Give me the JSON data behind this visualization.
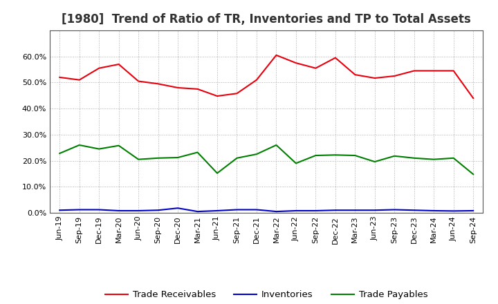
{
  "title": "[1980]  Trend of Ratio of TR, Inventories and TP to Total Assets",
  "labels": [
    "Jun-19",
    "Sep-19",
    "Dec-19",
    "Mar-20",
    "Jun-20",
    "Sep-20",
    "Dec-20",
    "Mar-21",
    "Jun-21",
    "Sep-21",
    "Dec-21",
    "Mar-22",
    "Jun-22",
    "Sep-22",
    "Dec-22",
    "Mar-23",
    "Jun-23",
    "Sep-23",
    "Dec-23",
    "Mar-24",
    "Jun-24",
    "Sep-24"
  ],
  "trade_receivables": [
    0.52,
    0.51,
    0.555,
    0.57,
    0.505,
    0.495,
    0.48,
    0.475,
    0.448,
    0.458,
    0.51,
    0.605,
    0.575,
    0.555,
    0.595,
    0.53,
    0.517,
    0.525,
    0.545,
    0.545,
    0.545,
    0.44
  ],
  "inventories": [
    0.01,
    0.012,
    0.012,
    0.008,
    0.008,
    0.01,
    0.018,
    0.005,
    0.008,
    0.012,
    0.012,
    0.005,
    0.008,
    0.008,
    0.01,
    0.01,
    0.01,
    0.012,
    0.01,
    0.008,
    0.007,
    0.008
  ],
  "trade_payables": [
    0.228,
    0.26,
    0.245,
    0.258,
    0.205,
    0.21,
    0.212,
    0.232,
    0.152,
    0.21,
    0.225,
    0.26,
    0.19,
    0.22,
    0.222,
    0.22,
    0.196,
    0.218,
    0.21,
    0.205,
    0.21,
    0.148
  ],
  "tr_color": "#e8000d",
  "inv_color": "#0000cd",
  "tp_color": "#008000",
  "background_color": "#ffffff",
  "grid_color": "#aaaaaa",
  "ylim": [
    0.0,
    0.7
  ],
  "yticks": [
    0.0,
    0.1,
    0.2,
    0.3,
    0.4,
    0.5,
    0.6
  ],
  "legend_labels": [
    "Trade Receivables",
    "Inventories",
    "Trade Payables"
  ],
  "title_fontsize": 12,
  "title_color": "#333333",
  "tick_fontsize": 8,
  "legend_fontsize": 9.5
}
